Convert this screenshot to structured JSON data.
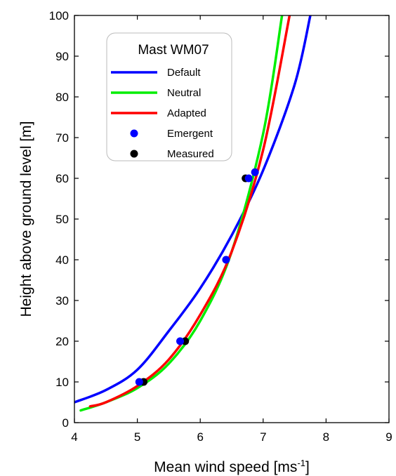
{
  "chart_data": {
    "type": "line",
    "xlabel": "Mean wind speed [ms",
    "xlabel_sup": "-1",
    "xlabel_end": "]",
    "ylabel": "Height above ground level [m]",
    "xlim": [
      4,
      9
    ],
    "ylim": [
      0,
      100
    ],
    "xticks": [
      4,
      5,
      6,
      7,
      8,
      9
    ],
    "yticks": [
      0,
      10,
      20,
      30,
      40,
      50,
      60,
      70,
      80,
      90,
      100
    ],
    "grid": false,
    "legend": {
      "title": "Mast WM07",
      "position": "top-left"
    },
    "series": [
      {
        "name": "Default",
        "kind": "line",
        "color": "#0000ff",
        "x": [
          4.0,
          4.5,
          5.0,
          5.5,
          6.0,
          6.5,
          7.0,
          7.5,
          7.75
        ],
        "y": [
          5,
          8,
          13,
          22.5,
          33,
          46,
          62,
          83,
          100
        ]
      },
      {
        "name": "Neutral",
        "kind": "line",
        "color": "#00ee00",
        "x": [
          4.1,
          4.5,
          5.0,
          5.5,
          6.0,
          6.5,
          7.0,
          7.3
        ],
        "y": [
          3,
          5,
          8.5,
          14.5,
          25,
          42,
          71,
          100
        ]
      },
      {
        "name": "Adapted",
        "kind": "line",
        "color": "#ff0000",
        "x": [
          4.25,
          4.5,
          5.0,
          5.5,
          6.0,
          6.5,
          7.0,
          7.42
        ],
        "y": [
          4,
          5,
          9,
          15.5,
          26.5,
          42,
          67,
          100
        ]
      },
      {
        "name": "Emergent",
        "kind": "scatter",
        "color": "#0000ff",
        "x": [
          5.03,
          5.68,
          6.41,
          6.77,
          6.87
        ],
        "y": [
          10,
          20,
          40,
          60,
          61.5
        ]
      },
      {
        "name": "Measured",
        "kind": "scatter",
        "color": "#000000",
        "x": [
          5.1,
          5.76,
          6.72
        ],
        "y": [
          10,
          20,
          60
        ]
      }
    ]
  }
}
